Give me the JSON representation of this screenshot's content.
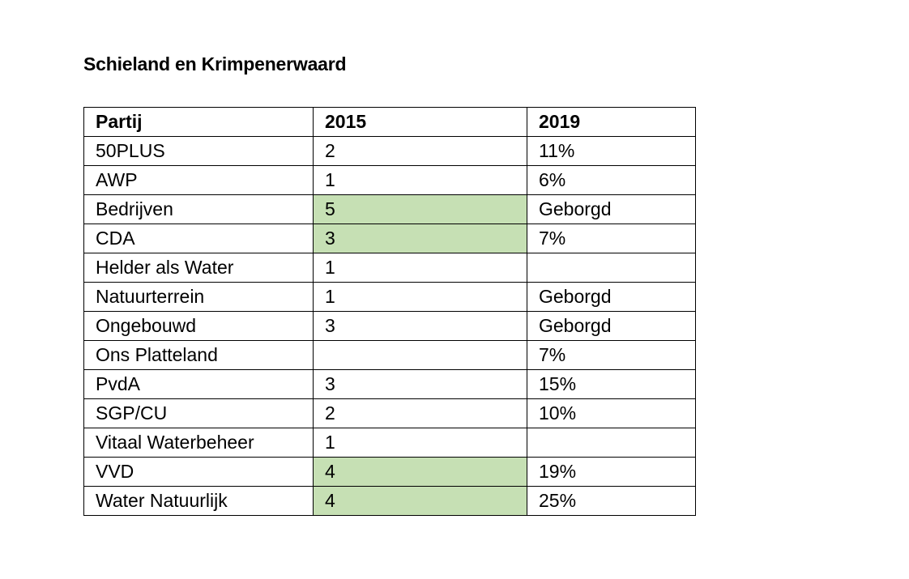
{
  "title": "Schieland en Krimpenerwaard",
  "table": {
    "headers": [
      "Partij",
      "2015",
      "2019"
    ],
    "rows": [
      {
        "party": "50PLUS",
        "y2015": "2",
        "y2019": "11%",
        "highlight": false
      },
      {
        "party": "AWP",
        "y2015": "1",
        "y2019": "6%",
        "highlight": false
      },
      {
        "party": "Bedrijven",
        "y2015": "5",
        "y2019": "Geborgd",
        "highlight": true
      },
      {
        "party": "CDA",
        "y2015": "3",
        "y2019": "7%",
        "highlight": true
      },
      {
        "party": "Helder als Water",
        "y2015": "1",
        "y2019": "",
        "highlight": false
      },
      {
        "party": "Natuurterrein",
        "y2015": "1",
        "y2019": "Geborgd",
        "highlight": false
      },
      {
        "party": "Ongebouwd",
        "y2015": "3",
        "y2019": "Geborgd",
        "highlight": false
      },
      {
        "party": "Ons Platteland",
        "y2015": "",
        "y2019": "7%",
        "highlight": false
      },
      {
        "party": "PvdA",
        "y2015": "3",
        "y2019": "15%",
        "highlight": false
      },
      {
        "party": "SGP/CU",
        "y2015": "2",
        "y2019": "10%",
        "highlight": false
      },
      {
        "party": "Vitaal Waterbeheer",
        "y2015": "1",
        "y2019": "",
        "highlight": false
      },
      {
        "party": "VVD",
        "y2015": "4",
        "y2019": "19%",
        "highlight": true
      },
      {
        "party": "Water Natuurlijk",
        "y2015": "4",
        "y2019": "25%",
        "highlight": true
      }
    ]
  },
  "colors": {
    "highlight": "#c6e0b4",
    "border": "#000000",
    "text": "#000000"
  }
}
